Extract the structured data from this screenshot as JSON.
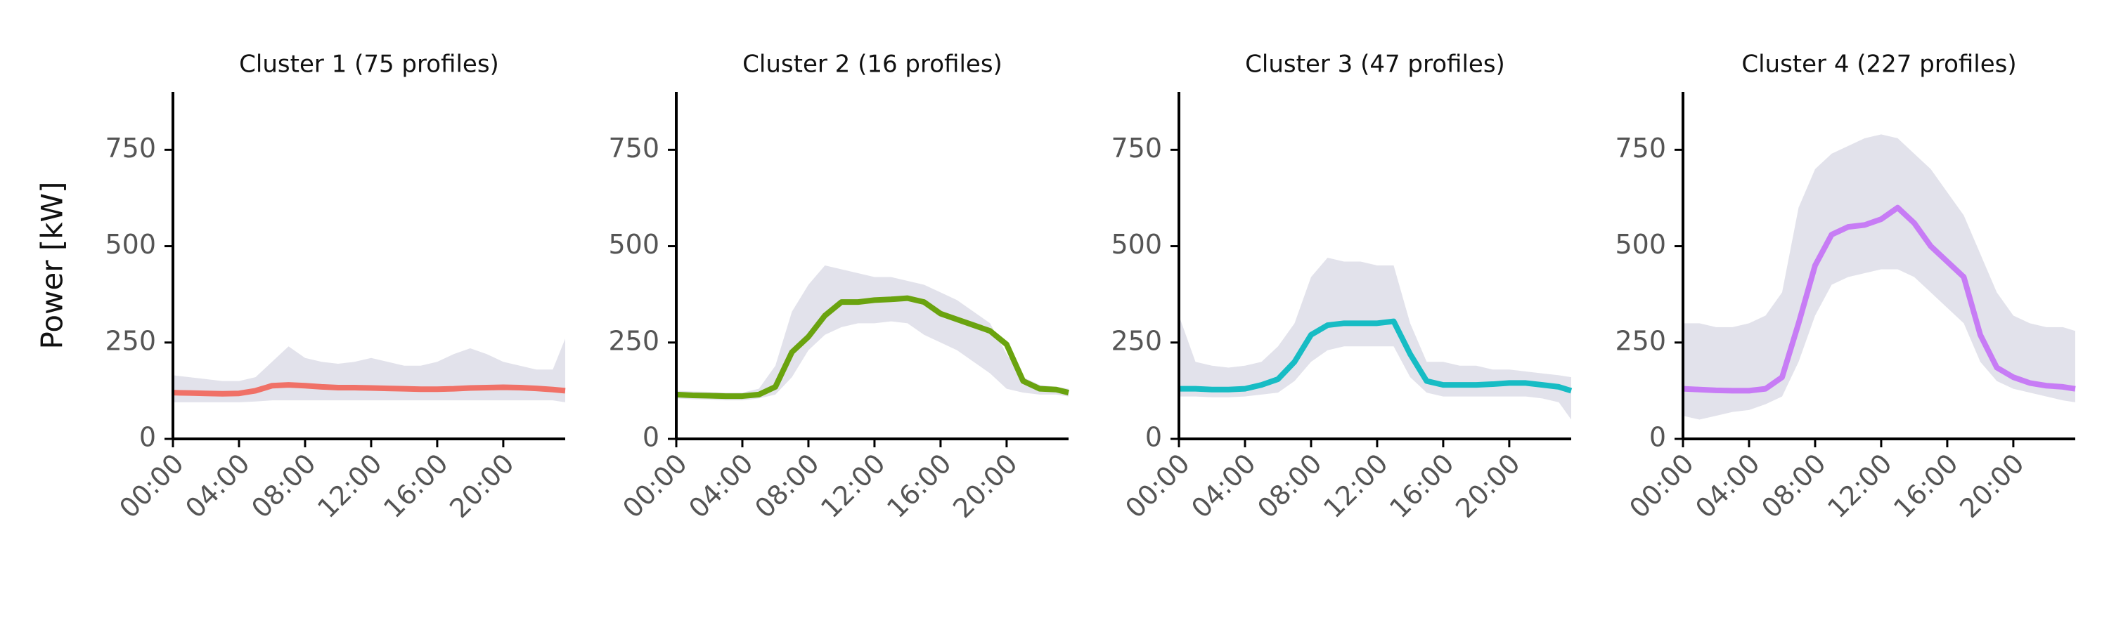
{
  "chart_data": [
    {
      "type": "line",
      "title": "Cluster 1 (75 profiles)",
      "ylabel": "Power [kW]",
      "x": [
        0,
        1,
        2,
        3,
        4,
        5,
        6,
        7,
        8,
        9,
        10,
        11,
        12,
        13,
        14,
        15,
        16,
        17,
        18,
        19,
        20,
        21,
        22,
        23,
        23.75
      ],
      "band_low": [
        95,
        95,
        95,
        95,
        95,
        97,
        100,
        100,
        100,
        100,
        100,
        100,
        100,
        100,
        100,
        100,
        100,
        100,
        100,
        100,
        100,
        100,
        100,
        100,
        95
      ],
      "band_high": [
        165,
        160,
        155,
        150,
        150,
        160,
        200,
        240,
        210,
        200,
        195,
        200,
        210,
        200,
        190,
        190,
        200,
        220,
        235,
        220,
        200,
        190,
        180,
        180,
        260
      ],
      "series": [
        {
          "color": "#f07167",
          "values": [
            120,
            119,
            118,
            117,
            118,
            125,
            138,
            140,
            138,
            135,
            133,
            133,
            132,
            131,
            130,
            129,
            129,
            130,
            132,
            133,
            134,
            133,
            131,
            128,
            125
          ]
        }
      ],
      "xlim": [
        0,
        23.75
      ],
      "ylim": [
        0,
        900
      ],
      "xticks": [
        {
          "value": 0,
          "label": "00:00"
        },
        {
          "value": 4,
          "label": "04:00"
        },
        {
          "value": 8,
          "label": "08:00"
        },
        {
          "value": 12,
          "label": "12:00"
        },
        {
          "value": 16,
          "label": "16:00"
        },
        {
          "value": 20,
          "label": "20:00"
        }
      ],
      "yticks": [
        0,
        250,
        500,
        750
      ],
      "grid": false
    },
    {
      "type": "line",
      "title": "Cluster 2 (16 profiles)",
      "x": [
        0,
        1,
        2,
        3,
        4,
        5,
        6,
        7,
        8,
        9,
        10,
        11,
        12,
        13,
        14,
        15,
        16,
        17,
        18,
        19,
        20,
        21,
        22,
        23,
        23.75
      ],
      "band_low": [
        105,
        103,
        102,
        100,
        100,
        105,
        115,
        160,
        230,
        270,
        290,
        300,
        300,
        305,
        300,
        270,
        250,
        230,
        200,
        170,
        130,
        120,
        115,
        115,
        110
      ],
      "band_high": [
        125,
        123,
        122,
        120,
        120,
        130,
        190,
        330,
        400,
        450,
        440,
        430,
        420,
        420,
        410,
        400,
        380,
        360,
        330,
        300,
        220,
        160,
        140,
        135,
        130
      ],
      "series": [
        {
          "color": "#6aa30f",
          "values": [
            115,
            113,
            112,
            111,
            111,
            115,
            135,
            225,
            265,
            320,
            355,
            355,
            360,
            362,
            365,
            355,
            325,
            310,
            295,
            280,
            245,
            150,
            130,
            128,
            120
          ]
        }
      ],
      "xlim": [
        0,
        23.75
      ],
      "ylim": [
        0,
        900
      ],
      "xticks": [
        {
          "value": 0,
          "label": "00:00"
        },
        {
          "value": 4,
          "label": "04:00"
        },
        {
          "value": 8,
          "label": "08:00"
        },
        {
          "value": 12,
          "label": "12:00"
        },
        {
          "value": 16,
          "label": "16:00"
        },
        {
          "value": 20,
          "label": "20:00"
        }
      ],
      "yticks": [
        0,
        250,
        500,
        750
      ],
      "grid": false
    },
    {
      "type": "line",
      "title": "Cluster 3 (47 profiles)",
      "x": [
        0,
        1,
        2,
        3,
        4,
        5,
        6,
        7,
        8,
        9,
        10,
        11,
        12,
        13,
        14,
        15,
        16,
        17,
        18,
        19,
        20,
        21,
        22,
        23,
        23.75
      ],
      "band_low": [
        110,
        110,
        108,
        108,
        110,
        115,
        120,
        150,
        200,
        230,
        240,
        240,
        240,
        240,
        160,
        120,
        110,
        110,
        110,
        110,
        110,
        110,
        105,
        95,
        50
      ],
      "band_high": [
        320,
        200,
        190,
        185,
        190,
        200,
        240,
        300,
        420,
        470,
        460,
        460,
        450,
        450,
        300,
        200,
        200,
        190,
        190,
        180,
        180,
        175,
        170,
        165,
        160
      ],
      "series": [
        {
          "color": "#17bcc4",
          "values": [
            130,
            130,
            128,
            128,
            130,
            140,
            155,
            200,
            270,
            295,
            300,
            300,
            300,
            305,
            220,
            150,
            140,
            140,
            140,
            142,
            145,
            145,
            140,
            135,
            125
          ]
        }
      ],
      "xlim": [
        0,
        23.75
      ],
      "ylim": [
        0,
        900
      ],
      "xticks": [
        {
          "value": 0,
          "label": "00:00"
        },
        {
          "value": 4,
          "label": "04:00"
        },
        {
          "value": 8,
          "label": "08:00"
        },
        {
          "value": 12,
          "label": "12:00"
        },
        {
          "value": 16,
          "label": "16:00"
        },
        {
          "value": 20,
          "label": "20:00"
        }
      ],
      "yticks": [
        0,
        250,
        500,
        750
      ],
      "grid": false
    },
    {
      "type": "line",
      "title": "Cluster 4 (227 profiles)",
      "x": [
        0,
        1,
        2,
        3,
        4,
        5,
        6,
        7,
        8,
        9,
        10,
        11,
        12,
        13,
        14,
        15,
        16,
        17,
        18,
        19,
        20,
        21,
        22,
        23,
        23.75
      ],
      "band_low": [
        60,
        50,
        60,
        70,
        75,
        90,
        110,
        200,
        320,
        400,
        420,
        430,
        440,
        440,
        420,
        380,
        340,
        300,
        200,
        150,
        130,
        120,
        110,
        100,
        95
      ],
      "band_high": [
        300,
        300,
        290,
        290,
        300,
        320,
        380,
        600,
        700,
        740,
        760,
        780,
        790,
        780,
        740,
        700,
        640,
        580,
        480,
        380,
        320,
        300,
        290,
        290,
        280
      ],
      "series": [
        {
          "color": "#c77cf5",
          "values": [
            130,
            128,
            126,
            125,
            125,
            130,
            160,
            300,
            450,
            530,
            550,
            555,
            570,
            600,
            560,
            500,
            460,
            420,
            270,
            185,
            160,
            145,
            138,
            135,
            130
          ]
        }
      ],
      "xlim": [
        0,
        23.75
      ],
      "ylim": [
        0,
        900
      ],
      "xticks": [
        {
          "value": 0,
          "label": "00:00"
        },
        {
          "value": 4,
          "label": "04:00"
        },
        {
          "value": 8,
          "label": "08:00"
        },
        {
          "value": 12,
          "label": "12:00"
        },
        {
          "value": 16,
          "label": "16:00"
        },
        {
          "value": 20,
          "label": "20:00"
        }
      ],
      "yticks": [
        0,
        250,
        500,
        750
      ],
      "grid": false
    }
  ]
}
